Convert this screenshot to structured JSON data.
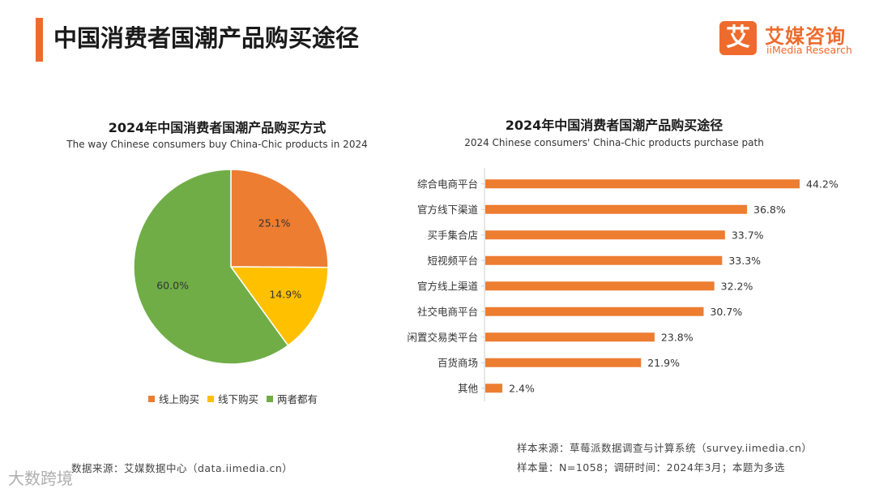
{
  "header": {
    "title": "中国消费者国潮产品购买途径",
    "logo_mark": "艾",
    "logo_cn": "艾媒咨询",
    "logo_en": "iiMedia Research",
    "accent_color": "#ee6b2d"
  },
  "left_chart": {
    "title": "2024年中国消费者国潮产品购买方式",
    "subtitle": "The way Chinese consumers buy China-Chic products in 2024"
  },
  "right_chart": {
    "title": "2024年中国消费者国潮产品购买途径",
    "subtitle": "2024 Chinese consumers' China-Chic products purchase path"
  },
  "chart_data": [
    {
      "type": "pie",
      "title": "2024年中国消费者国潮产品购买方式",
      "subtitle": "The way Chinese consumers buy China-Chic products in 2024",
      "labels": [
        "线上购买",
        "线下购买",
        "两者都有"
      ],
      "values": [
        25.1,
        14.9,
        60.0
      ],
      "display_labels": [
        "25.1%",
        "14.9%",
        "60.0%"
      ],
      "colors": [
        "#ed7d31",
        "#ffc000",
        "#70ad47"
      ],
      "legend": "bottom"
    },
    {
      "type": "bar",
      "orientation": "horizontal",
      "title": "2024年中国消费者国潮产品购买途径",
      "subtitle": "2024 Chinese consumers' China-Chic products purchase path",
      "categories": [
        "综合电商平台",
        "官方线下渠道",
        "买手集合店",
        "短视频平台",
        "官方线上渠道",
        "社交电商平台",
        "闲置交易类平台",
        "百货商场",
        "其他"
      ],
      "values": [
        44.2,
        36.8,
        33.7,
        33.3,
        32.2,
        30.7,
        23.8,
        21.9,
        2.4
      ],
      "display_labels": [
        "44.2%",
        "36.8%",
        "33.7%",
        "33.3%",
        "32.2%",
        "30.7%",
        "23.8%",
        "21.9%",
        "2.4%"
      ],
      "unit": "%",
      "xlim": [
        0,
        50
      ],
      "color": "#ed7d31"
    }
  ],
  "footer": {
    "left_source": "数据来源：艾媒数据中心（data.iimedia.cn）",
    "right_source": "样本来源：草莓派数据调查与计算系统（survey.iimedia.cn）",
    "right_sample": "样本量：N=1058；调研时间：2024年3月；本题为多选",
    "watermark": "大数跨境"
  }
}
